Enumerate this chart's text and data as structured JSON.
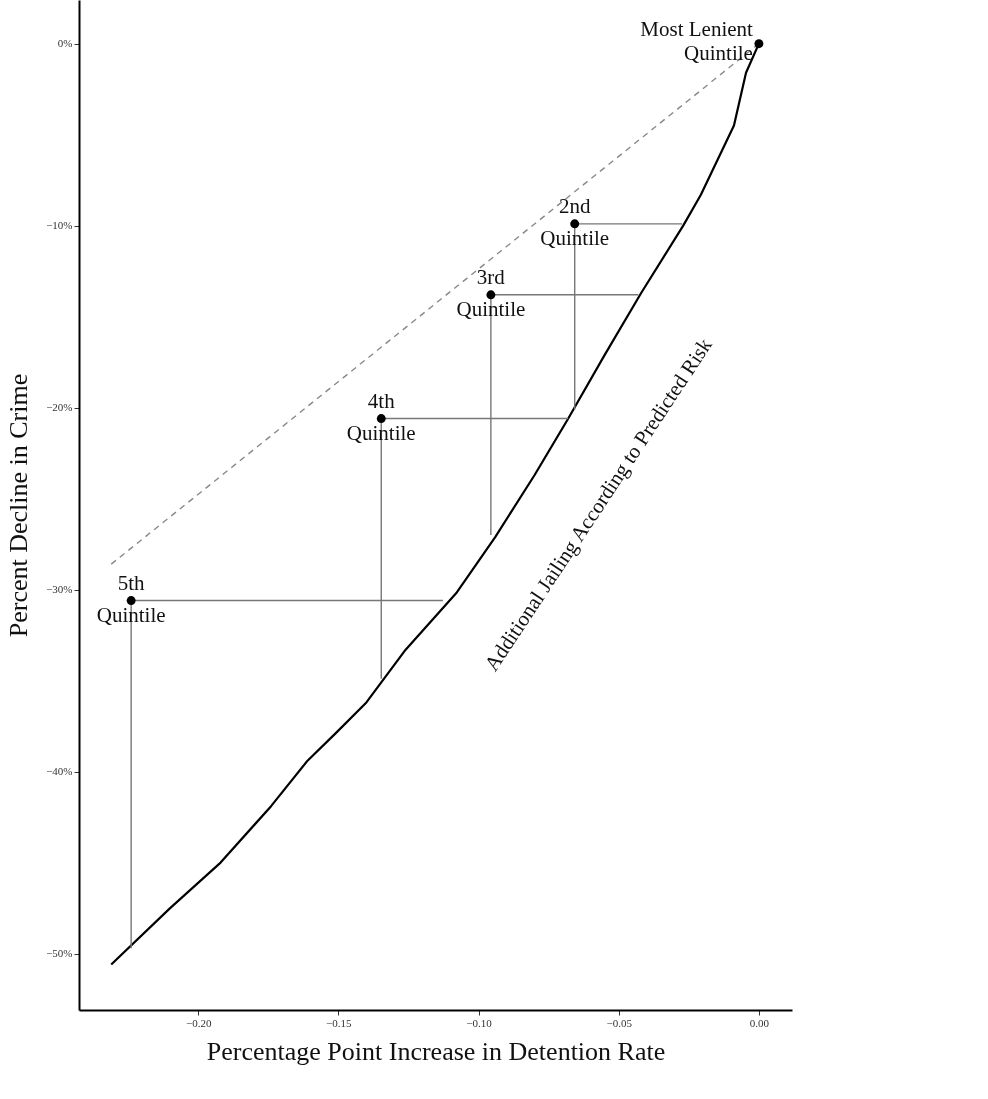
{
  "chart_data": {
    "type": "line",
    "xlabel": "Percentage Point Increase in Detention Rate",
    "ylabel": "Percent Decline in Crime",
    "xlim": [
      -0.2425,
      0.0118
    ],
    "ylim": [
      -53.1,
      2.4
    ],
    "xticks": [
      {
        "value": -0.2,
        "label": "−0.20"
      },
      {
        "value": -0.15,
        "label": "−0.15"
      },
      {
        "value": -0.1,
        "label": "−0.10"
      },
      {
        "value": -0.05,
        "label": "−0.05"
      },
      {
        "value": 0,
        "label": "0.00"
      }
    ],
    "yticks": [
      {
        "value": -50,
        "label": "−50%"
      },
      {
        "value": -40,
        "label": "−40%"
      },
      {
        "value": -30,
        "label": "−30%"
      },
      {
        "value": -20,
        "label": "−20%"
      },
      {
        "value": -10,
        "label": "−10%"
      },
      {
        "value": 0,
        "label": "0%"
      }
    ],
    "grid": false,
    "series": [
      {
        "color": "#000000",
        "line_style": "solid",
        "x": [
          0,
          -0.0046,
          -0.0089,
          -0.0207,
          -0.027,
          -0.042,
          -0.055,
          -0.068,
          -0.08,
          -0.094,
          -0.108,
          -0.126,
          -0.14,
          -0.151,
          -0.161,
          -0.174,
          -0.192,
          -0.21,
          -0.231
        ],
        "values": [
          0,
          -1.6,
          -4.5,
          -8.3,
          -10,
          -13.7,
          -17.1,
          -20.6,
          -23.7,
          -27.1,
          -30.2,
          -33.3,
          -36.2,
          -37.9,
          -39.4,
          -41.9,
          -45.0,
          -47.5,
          -50.6
        ]
      },
      {
        "type": "line",
        "color": "#888888",
        "line_style": "dashed",
        "x": [
          -0.231,
          0
        ],
        "values": [
          -28.6,
          0
        ]
      },
      {
        "type": "line",
        "color": "#777777",
        "line_style": "solid",
        "x": [
          -0.0657,
          -0.0274
        ],
        "values": [
          -9.9,
          -9.9
        ]
      },
      {
        "type": "line",
        "color": "#777777",
        "line_style": "solid",
        "x": [
          -0.0657,
          -0.0657
        ],
        "values": [
          -9.9,
          -20.1
        ]
      },
      {
        "type": "line",
        "color": "#777777",
        "line_style": "solid",
        "x": [
          -0.0956,
          -0.043
        ],
        "values": [
          -13.8,
          -13.8
        ]
      },
      {
        "type": "line",
        "color": "#777777",
        "line_style": "solid",
        "x": [
          -0.0956,
          -0.0956
        ],
        "values": [
          -13.8,
          -27.0
        ]
      },
      {
        "type": "line",
        "color": "#777777",
        "line_style": "solid",
        "x": [
          -0.1347,
          -0.068
        ],
        "values": [
          -20.6,
          -20.6
        ]
      },
      {
        "type": "line",
        "color": "#777777",
        "line_style": "solid",
        "x": [
          -0.1347,
          -0.1347
        ],
        "values": [
          -20.6,
          -34.9
        ]
      },
      {
        "type": "line",
        "color": "#777777",
        "line_style": "solid",
        "x": [
          -0.2239,
          -0.1127
        ],
        "values": [
          -30.6,
          -30.6
        ]
      },
      {
        "type": "line",
        "color": "#777777",
        "line_style": "solid",
        "x": [
          -0.2239,
          -0.2239
        ],
        "values": [
          -30.6,
          -49.7
        ]
      },
      {
        "type": "scatter",
        "color": "#000000",
        "marker": "circle",
        "x": [
          0,
          -0.0657,
          -0.0956,
          -0.1347,
          -0.2239
        ],
        "values": [
          0,
          -9.9,
          -13.8,
          -20.6,
          -30.6
        ]
      }
    ],
    "annotations": [
      {
        "text": "Most Lenient\nQuintile",
        "x": 0,
        "y": 0
      },
      {
        "text": "2nd\nQuintile",
        "x": -0.0657,
        "y": -9.9
      },
      {
        "text": "3rd\nQuintile",
        "x": -0.0956,
        "y": -13.8
      },
      {
        "text": "4th\nQuintile",
        "x": -0.1347,
        "y": -20.6
      },
      {
        "text": "5th\nQuintile",
        "x": -0.2239,
        "y": -30.6
      },
      "Additional Jailing According to Predicted Risk"
    ]
  }
}
